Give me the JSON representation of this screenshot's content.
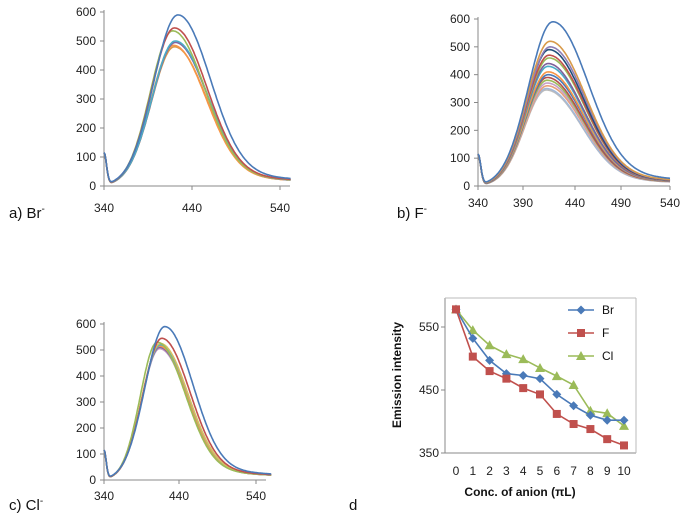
{
  "chart_data": [
    {
      "id": "a",
      "type": "line",
      "panel_label": "a) Br",
      "panel_sup": "-",
      "x_ticks": [
        "340",
        "440",
        "540"
      ],
      "y_ticks": [
        "0",
        "100",
        "200",
        "300",
        "400",
        "500",
        "600"
      ],
      "xlim": [
        340,
        552
      ],
      "ylim": [
        0,
        600
      ],
      "peaks": [
        590,
        545,
        535,
        500,
        495,
        485,
        480
      ],
      "peak_x": [
        424,
        420,
        418,
        421,
        421,
        419,
        420
      ],
      "colors": [
        "#4a7ab8",
        "#c0504d",
        "#9bbb59",
        "#4bacc6",
        "#8064a2",
        "#f79646",
        "#d89a4a"
      ]
    },
    {
      "id": "b",
      "type": "line",
      "panel_label": "b) F",
      "panel_sup": "-",
      "x_ticks": [
        "340",
        "390",
        "440",
        "490",
        "540"
      ],
      "y_ticks": [
        "0",
        "100",
        "200",
        "300",
        "400",
        "500",
        "600"
      ],
      "xlim": [
        340,
        540
      ],
      "ylim": [
        0,
        600
      ],
      "peaks": [
        590,
        520,
        500,
        490,
        470,
        460,
        440,
        430,
        410,
        400,
        390,
        380,
        370,
        360,
        350,
        345
      ],
      "peak_x": [
        418,
        415,
        415,
        414,
        414,
        414,
        413,
        413,
        413,
        413,
        412,
        412,
        412,
        412,
        411,
        411
      ],
      "colors": [
        "#4a7ab8",
        "#d89a4a",
        "#8e7db5",
        "#1f4e79",
        "#c0504d",
        "#9bbb59",
        "#7f6099",
        "#4bacc6",
        "#f79646",
        "#4a7ab8",
        "#b44f4c",
        "#9bbb59",
        "#c5a0c8",
        "#e6a07a",
        "#a3b8d8",
        "#bcbcbc"
      ]
    },
    {
      "id": "c",
      "type": "line",
      "panel_label": "c) Cl",
      "panel_sup": "-",
      "x_ticks": [
        "340",
        "440",
        "540"
      ],
      "y_ticks": [
        "0",
        "100",
        "200",
        "300",
        "400",
        "500",
        "600"
      ],
      "xlim": [
        340,
        560
      ],
      "ylim": [
        0,
        600
      ],
      "peaks": [
        590,
        545,
        530,
        525,
        520,
        515,
        510,
        505
      ],
      "peak_x": [
        420,
        416,
        410,
        414,
        414,
        413,
        413,
        413
      ],
      "colors": [
        "#4a7ab8",
        "#c0504d",
        "#9bbb59",
        "#d6c060",
        "#4bacc6",
        "#f79646",
        "#8064a2",
        "#c5a0c8"
      ]
    },
    {
      "id": "d",
      "type": "line",
      "panel_label": "d",
      "xlabel": "Conc. of anion (πL)",
      "ylabel": "Emission intensity",
      "x": [
        0,
        1,
        2,
        3,
        4,
        5,
        6,
        7,
        8,
        9,
        10
      ],
      "ylim": [
        350,
        580
      ],
      "y_ticks": [
        "350",
        "450",
        "550"
      ],
      "legend_position": "top-right",
      "series": [
        {
          "name": "Br",
          "color": "#4a7ab8",
          "marker": "diamond",
          "values": [
            578,
            532,
            497,
            476,
            473,
            468,
            443,
            425,
            410,
            402,
            402
          ]
        },
        {
          "name": "F",
          "color": "#c0504d",
          "marker": "square",
          "values": [
            578,
            503,
            480,
            468,
            453,
            443,
            412,
            396,
            388,
            372,
            362
          ]
        },
        {
          "name": "Cl",
          "color": "#9bbb59",
          "marker": "triangle",
          "values": [
            578,
            545,
            521,
            507,
            499,
            485,
            472,
            458,
            417,
            413,
            393
          ]
        }
      ]
    }
  ]
}
